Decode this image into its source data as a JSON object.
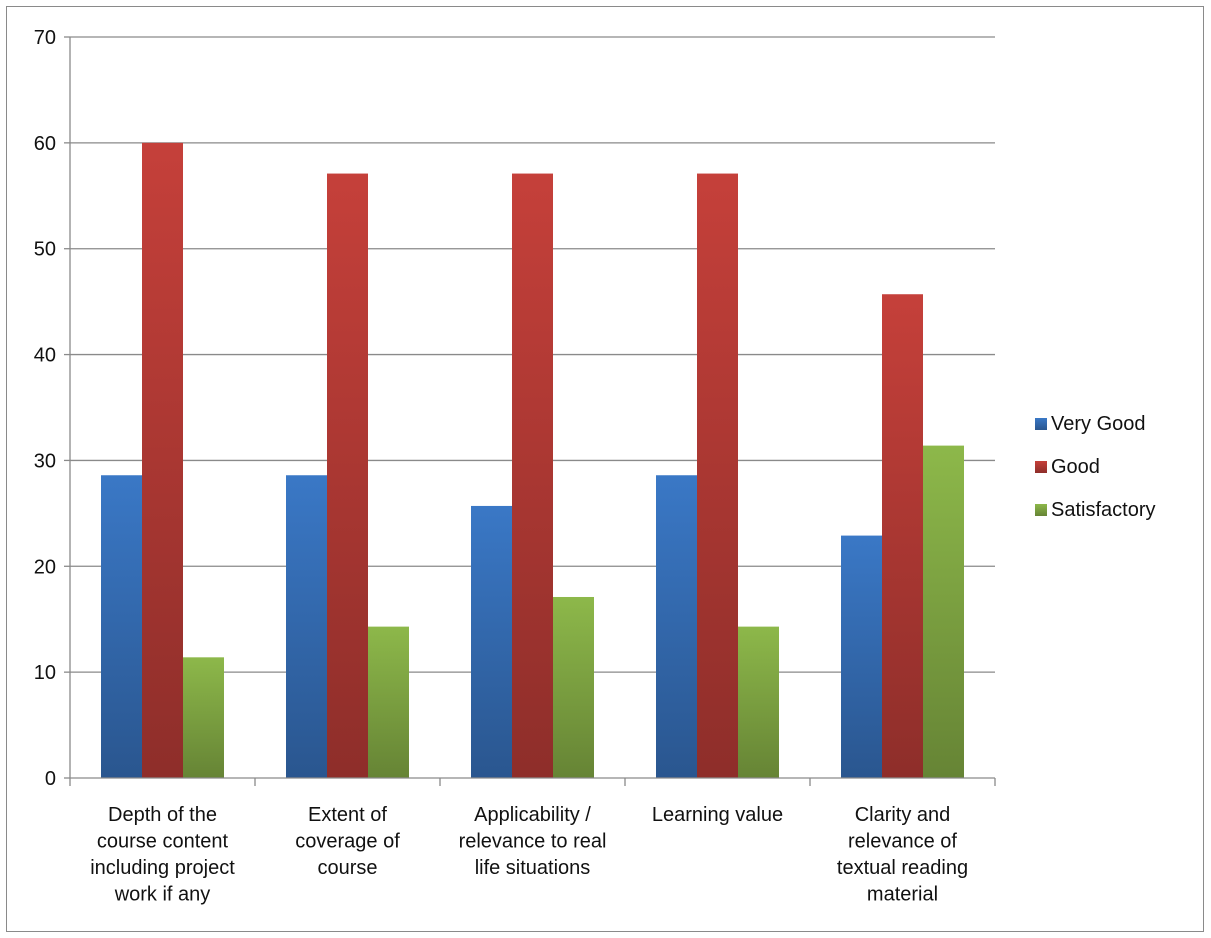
{
  "chart_data": {
    "type": "bar",
    "categories": [
      "Depth of the course content including project work if any",
      "Extent of coverage of course",
      "Applicability / relevance to real life situations",
      "Learning value",
      "Clarity and relevance of textual reading material"
    ],
    "category_lines": [
      [
        "Depth of the",
        "course content",
        "including project",
        "work if any"
      ],
      [
        "Extent of",
        "coverage of",
        "course"
      ],
      [
        "Applicability /",
        "relevance to real",
        "life situations"
      ],
      [
        "Learning value"
      ],
      [
        "Clarity and",
        "relevance of",
        "textual reading",
        "material"
      ]
    ],
    "series": [
      {
        "name": "Very Good",
        "values": [
          28.6,
          28.6,
          25.7,
          28.6,
          22.9
        ],
        "color": "#3a78c6"
      },
      {
        "name": "Good",
        "values": [
          60.0,
          57.1,
          57.1,
          57.1,
          45.7
        ],
        "color": "#c5403a"
      },
      {
        "name": "Satisfactory",
        "values": [
          11.4,
          14.3,
          17.1,
          14.3,
          31.4
        ],
        "color": "#8db84a"
      }
    ],
    "ylim": [
      0,
      70
    ],
    "yticks": [
      0,
      10,
      20,
      30,
      40,
      50,
      60,
      70
    ],
    "grid": true,
    "legend_position": "right",
    "title": "",
    "xlabel": "",
    "ylabel": ""
  }
}
